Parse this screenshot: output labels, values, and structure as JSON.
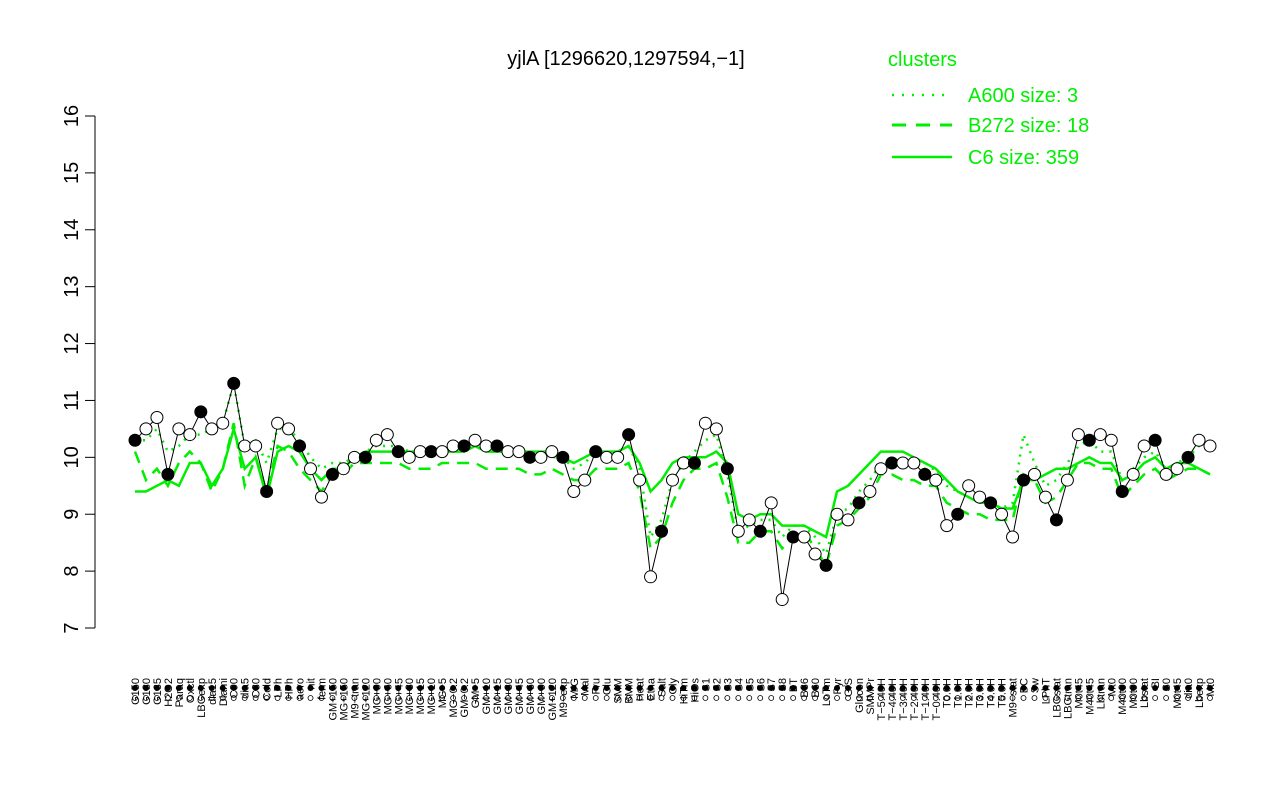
{
  "chart_data": {
    "type": "line",
    "title": "yjlA [1296620,1297594,−1]",
    "xlabel": "",
    "ylabel": "",
    "ylim": [
      7,
      16
    ],
    "yticks": [
      7,
      8,
      9,
      10,
      11,
      12,
      13,
      14,
      15,
      16
    ],
    "grid": false,
    "legend": {
      "title": "clusters",
      "placement": "top-right",
      "color": "#00ee00",
      "entries": [
        {
          "label": "A600 size: 3",
          "style": "dotted"
        },
        {
          "label": "B272 size: 18",
          "style": "dashed"
        },
        {
          "label": "C6 size: 359",
          "style": "solid"
        }
      ]
    },
    "x_tick_labels": [
      "G150",
      "G180",
      "G135",
      "H2O2",
      "Paraq",
      "Oxctl",
      "LBGexp",
      "dia15",
      "Diami",
      "C90",
      "dia5",
      "C30",
      "Cold",
      "LPh",
      "HPh",
      "aero",
      "nit",
      "ferm",
      "GM+150",
      "MG+150",
      "M9−tran",
      "MG+120",
      "MG+90",
      "MG+60",
      "MG+45",
      "MG+30",
      "MG+15",
      "MG+10",
      "MG+5",
      "MG−0.2",
      "GM−0.2",
      "GM+5",
      "GM+10",
      "GM+15",
      "GM+30",
      "GM+45",
      "GM+60",
      "GM+90",
      "GM+120",
      "M9−exp",
      "M/G",
      "Mal",
      "Fru",
      "Glu",
      "SMM",
      "BMM",
      "Heat",
      "Etha",
      "Salt",
      "Gly",
      "HiTm",
      "HiOs",
      "S1",
      "S2",
      "S3",
      "S4",
      "S5",
      "S6",
      "S7",
      "S8",
      "BT",
      "B36",
      "B60",
      "LoTm",
      "Pyr",
      "G/S",
      "Glucon",
      "SMMPr",
      "T−5.40H",
      "T−4.40H",
      "T−3.40H",
      "T−2.40H",
      "T−1.40H",
      "T−0.40H",
      "T0.0H",
      "T1.0H",
      "T2.0H",
      "T3.0H",
      "T4.0H",
      "T5.0H",
      "M9−stat",
      "BC",
      "Sw",
      "LPhT",
      "LBGstat",
      "LBGtran",
      "M0t45",
      "M40t45",
      "Lbtran",
      "Mt0",
      "M40t90",
      "M0t90",
      "Lbstat",
      "BI",
      "S0",
      "M0t45",
      "dia0",
      "Lbexp",
      "Mt0"
    ],
    "series": [
      {
        "style": "dotted",
        "color": "#00ee00",
        "values": [
          10.3,
          10.3,
          10.5,
          10.1,
          10.2,
          10.4,
          10.4,
          10.5,
          10.6,
          11.3,
          10.2,
          10.3,
          9.9,
          10.5,
          10.5,
          10.3,
          10.0,
          9.8,
          9.9,
          9.9,
          10.0,
          10.1,
          10.2,
          10.2,
          10.2,
          10.1,
          10.1,
          10.1,
          10.1,
          10.2,
          10.2,
          10.2,
          10.1,
          10.1,
          10.1,
          10.1,
          10.0,
          10.0,
          10.0,
          10.0,
          9.8,
          9.9,
          10.1,
          10.1,
          10.1,
          10.2,
          9.8,
          8.6,
          8.9,
          9.6,
          9.9,
          10.1,
          10.3,
          10.4,
          9.7,
          8.7,
          8.8,
          8.9,
          8.9,
          8.6,
          8.8,
          8.8,
          8.6,
          8.3,
          9.0,
          9.1,
          9.4,
          9.6,
          9.9,
          9.9,
          9.9,
          9.9,
          9.8,
          9.8,
          9.5,
          9.4,
          9.3,
          9.2,
          9.2,
          9.1,
          9.2,
          10.4,
          9.9,
          9.5,
          9.6,
          9.9,
          10.2,
          10.3,
          10.1,
          10.1,
          9.6,
          9.8,
          10.0,
          10.1,
          9.8,
          9.9,
          10.0,
          10.2,
          10.1
        ]
      },
      {
        "style": "dashed",
        "color": "#00ee00",
        "values": [
          10.1,
          9.6,
          9.8,
          9.5,
          9.9,
          10.1,
          9.9,
          9.4,
          9.8,
          10.6,
          9.5,
          10.0,
          9.4,
          10.2,
          10.1,
          9.8,
          9.6,
          9.4,
          9.7,
          9.7,
          9.9,
          9.9,
          9.9,
          9.9,
          9.9,
          9.8,
          9.8,
          9.8,
          9.9,
          9.9,
          9.9,
          9.9,
          9.8,
          9.8,
          9.8,
          9.8,
          9.7,
          9.7,
          9.8,
          9.7,
          9.6,
          9.6,
          9.8,
          9.8,
          9.8,
          9.9,
          9.4,
          8.4,
          8.6,
          9.2,
          9.6,
          9.8,
          9.8,
          9.9,
          9.3,
          8.5,
          8.5,
          8.7,
          8.7,
          8.4,
          8.6,
          8.7,
          8.4,
          8.1,
          8.8,
          8.9,
          9.1,
          9.3,
          9.7,
          9.7,
          9.6,
          9.6,
          9.5,
          9.5,
          9.2,
          9.1,
          9.0,
          9.0,
          8.9,
          8.9,
          8.9,
          9.7,
          9.6,
          9.2,
          9.3,
          9.6,
          9.9,
          9.9,
          9.8,
          9.8,
          9.3,
          9.5,
          9.7,
          9.8,
          9.6,
          9.7,
          9.8,
          9.8,
          9.7
        ]
      },
      {
        "style": "solid",
        "color": "#00ee00",
        "values": [
          9.4,
          9.4,
          9.5,
          9.6,
          9.5,
          9.9,
          9.9,
          9.5,
          9.8,
          10.5,
          9.8,
          10.0,
          9.3,
          10.1,
          10.2,
          10.1,
          9.8,
          9.6,
          9.8,
          9.8,
          10.0,
          10.1,
          10.1,
          10.1,
          10.1,
          10.1,
          10.1,
          10.1,
          10.1,
          10.1,
          10.1,
          10.2,
          10.1,
          10.1,
          10.1,
          10.1,
          10.1,
          10.1,
          10.1,
          10.0,
          9.9,
          10.0,
          10.1,
          10.1,
          10.1,
          10.2,
          9.9,
          9.4,
          9.6,
          9.9,
          10.0,
          10.0,
          10.0,
          10.1,
          9.9,
          9.0,
          8.9,
          9.0,
          9.0,
          8.8,
          8.8,
          8.8,
          8.7,
          8.6,
          9.4,
          9.5,
          9.7,
          9.9,
          10.1,
          10.1,
          10.1,
          10.0,
          9.9,
          9.8,
          9.6,
          9.4,
          9.3,
          9.2,
          9.2,
          9.1,
          9.1,
          9.6,
          9.6,
          9.7,
          9.8,
          9.8,
          9.9,
          10.0,
          9.9,
          9.9,
          9.6,
          9.7,
          9.9,
          10.0,
          9.8,
          9.9,
          9.9,
          9.8,
          9.7
        ]
      },
      {
        "style": "solid",
        "color": "#000000",
        "name": "",
        "values": [
          10.3,
          10.5,
          10.7,
          9.7,
          10.5,
          10.4,
          10.8,
          10.5,
          10.6,
          11.3,
          10.2,
          10.2,
          9.4,
          10.6,
          10.5,
          10.2,
          9.8,
          9.3,
          9.7,
          9.8,
          10.0,
          10.0,
          10.3,
          10.4,
          10.1,
          10.0,
          10.1,
          10.1,
          10.1,
          10.2,
          10.2,
          10.3,
          10.2,
          10.2,
          10.1,
          10.1,
          10.0,
          10.0,
          10.1,
          10.0,
          9.4,
          9.6,
          10.1,
          10.0,
          10.0,
          10.4,
          9.6,
          7.9,
          8.7,
          9.6,
          9.9,
          9.9,
          10.6,
          10.5,
          9.8,
          8.7,
          8.9,
          8.7,
          9.2,
          7.5,
          8.6,
          8.6,
          8.3,
          8.1,
          9.0,
          8.9,
          9.2,
          9.4,
          9.8,
          9.9,
          9.9,
          9.9,
          9.7,
          9.6,
          8.8,
          9.0,
          9.5,
          9.3,
          9.2,
          9.0,
          8.6,
          9.6,
          9.7,
          9.3,
          8.9,
          9.6,
          10.4,
          10.3,
          10.4,
          10.3,
          9.4,
          9.7,
          10.2,
          10.3,
          9.7,
          9.8,
          10.0,
          10.3,
          10.2
        ]
      }
    ]
  }
}
